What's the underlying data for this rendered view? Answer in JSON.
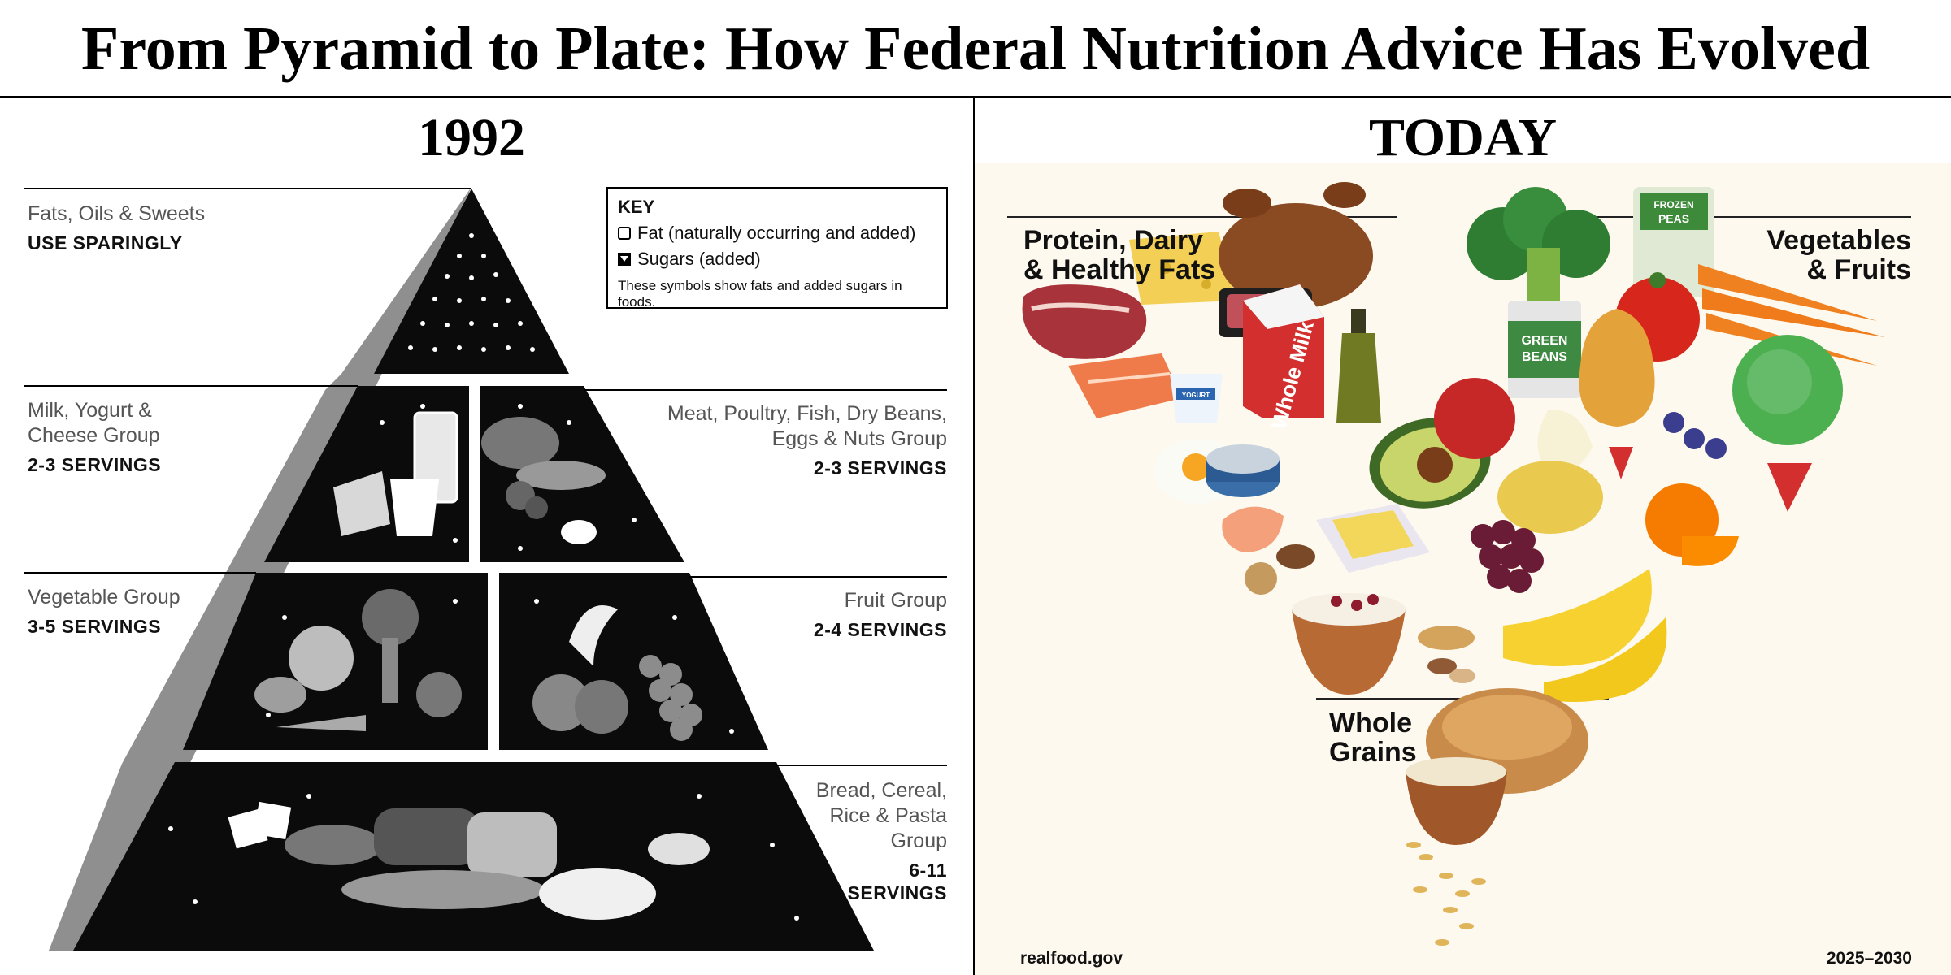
{
  "title": "From Pyramid to Plate: How Federal Nutrition Advice Has Evolved",
  "left": {
    "heading": "1992",
    "key": {
      "title": "KEY",
      "fat": "Fat (naturally occurring and added)",
      "sugars": "Sugars (added)",
      "note": "These symbols show fats and added sugars in foods."
    },
    "groups": {
      "fats": {
        "name": "Fats, Oils & Sweets",
        "servings": "USE SPARINGLY"
      },
      "milk": {
        "name_line1": "Milk, Yogurt &",
        "name_line2": "Cheese Group",
        "servings": "2-3 SERVINGS"
      },
      "meat": {
        "name_line1": "Meat, Poultry, Fish, Dry Beans,",
        "name_line2": "Eggs & Nuts Group",
        "servings": "2-3 SERVINGS"
      },
      "vegetable": {
        "name": "Vegetable Group",
        "servings": "3-5 SERVINGS"
      },
      "fruit": {
        "name": "Fruit Group",
        "servings": "2-4 SERVINGS"
      },
      "bread": {
        "name_line1": "Bread, Cereal,",
        "name_line2": "Rice & Pasta",
        "name_line3": "Group",
        "servings_line1": "6-11",
        "servings_line2": "SERVINGS"
      }
    }
  },
  "right": {
    "heading": "TODAY",
    "labels": {
      "protein_line1": "Protein, Dairy",
      "protein_line2": "& Healthy Fats",
      "veg_line1": "Vegetables",
      "veg_line2": "& Fruits",
      "grains_line1": "Whole",
      "grains_line2": "Grains"
    },
    "product_text": {
      "frozen_peas_line1": "FROZEN",
      "frozen_peas_line2": "PEAS",
      "green_beans_line1": "GREEN",
      "green_beans_line2": "BEANS",
      "whole_milk": "Whole Milk",
      "yogurt": "YOGURT"
    },
    "footer_left": "realfood.gov",
    "footer_right": "2025–2030"
  },
  "colors": {
    "pyramid_black": "#0b0b0b",
    "pyramid_side": "#9a9a9a",
    "today_background": "#fdf9ee",
    "accent_red": "#c62828",
    "accent_green": "#2e7d32",
    "accent_orange": "#ef6c00"
  }
}
